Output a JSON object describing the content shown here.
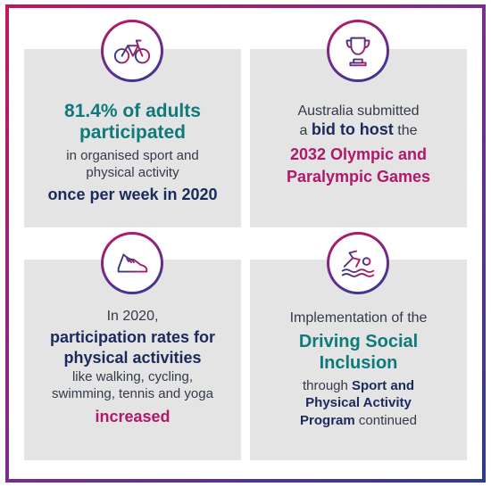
{
  "panels": {
    "sport": {
      "icon": "bicycle-icon",
      "line1": "81.4% of adults",
      "line2": "participated",
      "line3": "in organised sport and",
      "line4": "physical activity",
      "line5": "once per week in 2020"
    },
    "olympics": {
      "icon": "trophy-icon",
      "line1": "Australia submitted",
      "line2_prefix": "a ",
      "line2_bold": "bid to host",
      "line2_suffix": " the",
      "line3": "2032 Olympic and",
      "line4": "Paralympic Games"
    },
    "participation": {
      "icon": "running-shoe-icon",
      "line1": "In 2020,",
      "line2": "participation rates for",
      "line3": "physical activities",
      "line4": "like walking, cycling,",
      "line5": "swimming, tennis and yoga",
      "line6": "increased"
    },
    "inclusion": {
      "icon": "swimmer-icon",
      "line1": "Implementation of the",
      "line2": "Driving Social",
      "line3": "Inclusion",
      "line4_prefix": "through ",
      "line4_bold": "Sport and",
      "line5": "Physical Activity",
      "line6_bold": "Program",
      "line6_suffix": " continued"
    }
  },
  "colors": {
    "teal": "#0f7a7a",
    "navy": "#1b2a5c",
    "magenta": "#b0186a",
    "panel_bg": "#e4e4e4"
  }
}
